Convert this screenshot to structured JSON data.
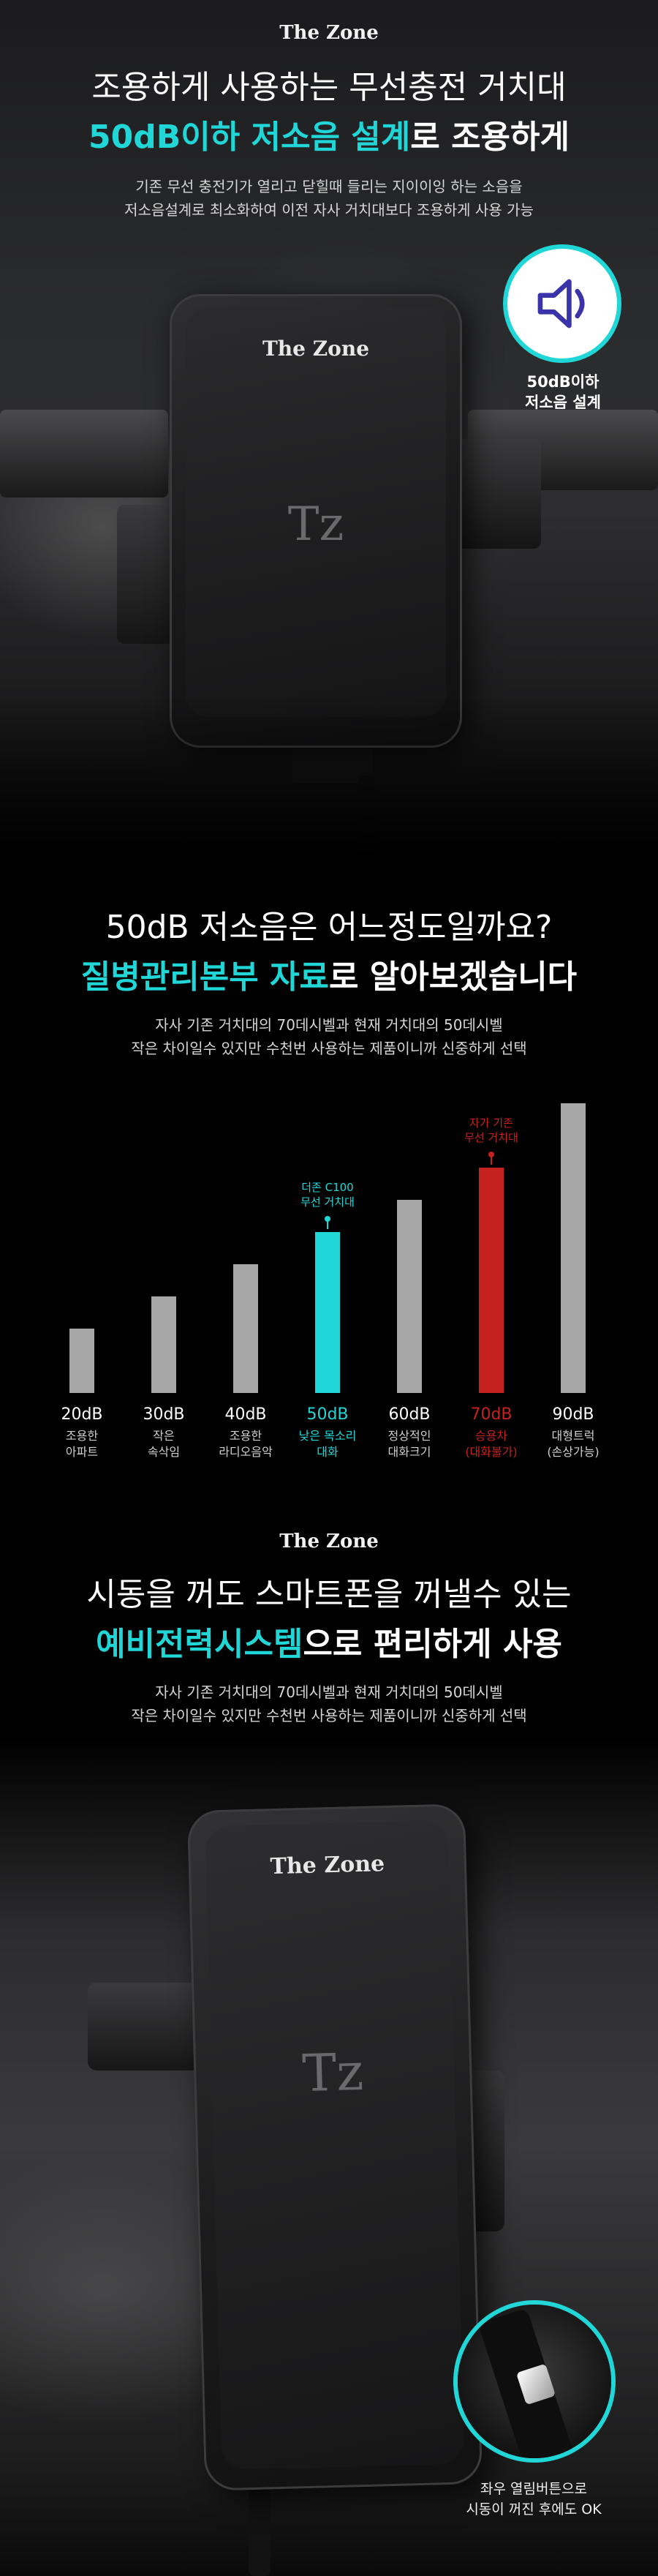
{
  "hero": {
    "brand": "The Zone",
    "title_line1": "조용하게 사용하는 무선충전 거치대",
    "title_line2_accent": "50dB이하 저소음 설계",
    "title_line2_rest": "로 조용하게",
    "desc_line1": "기존 무선 충전기가 열리고 닫힐때 들리는 지이이잉 하는 소음을",
    "desc_line2": "저소음설계로 최소화하여 이전 자사 거치대보다 조용하게 사용 가능",
    "device_brand": "The Zone",
    "device_logo": "Tz",
    "badge_icon": "speaker-icon",
    "badge_caption_line1": "50dB이하",
    "badge_caption_line2": "저소음 설계",
    "accent_color": "#21d6d6"
  },
  "noise_section": {
    "title_line1": "50dB 저소음은 어느정도일까요?",
    "title_line2_accent": "질병관리본부 자료",
    "title_line2_rest": "로 알아보겠습니다",
    "desc_line1": "자사 기존 거치대의 70데시벨과 현재 거치대의 50데시벨",
    "desc_line2": "작은 차이일수 있지만 수천번 사용하는 제품이니까 신중하게 선택"
  },
  "chart_data": {
    "type": "bar",
    "title": "",
    "xlabel": "",
    "ylabel": "",
    "ylim": [
      0,
      90
    ],
    "grid": false,
    "categories": [
      "20dB",
      "30dB",
      "40dB",
      "50dB",
      "60dB",
      "70dB",
      "90dB"
    ],
    "values": [
      20,
      30,
      40,
      50,
      60,
      70,
      90
    ],
    "descriptions": [
      [
        "조용한",
        "아파트"
      ],
      [
        "작은",
        "속삭임"
      ],
      [
        "조용한",
        "라디오음악"
      ],
      [
        "낮은 목소리",
        "대화"
      ],
      [
        "정상적인",
        "대화크기"
      ],
      [
        "승용차",
        "(대화불가)"
      ],
      [
        "대형트럭",
        "(손상가능)"
      ]
    ],
    "bar_colors": [
      "#a7a7a7",
      "#a7a7a7",
      "#a7a7a7",
      "#21d6d6",
      "#a7a7a7",
      "#c4211f",
      "#a7a7a7"
    ],
    "annotations": [
      {
        "category": "50dB",
        "lines": [
          "더존 C100",
          "무선 거치대"
        ],
        "color": "#21d6d6"
      },
      {
        "category": "70dB",
        "lines": [
          "자가 기존",
          "무선 거치대"
        ],
        "color": "#c4211f"
      }
    ]
  },
  "backup": {
    "brand": "The Zone",
    "title_line1": "시동을 꺼도 스마트폰을 꺼낼수 있는",
    "title_line2_accent": "예비전력시스템",
    "title_line2_rest": "으로 편리하게 사용",
    "desc_line1": "자사 기존 거치대의 70데시벨과 현재 거치대의 50데시벨",
    "desc_line2": "작은 차이일수 있지만 수천번 사용하는 제품이니까 신중하게 선택",
    "device_brand": "The Zone",
    "device_logo": "Tz",
    "zoom_caption_line1": "좌우 열림버튼으로",
    "zoom_caption_line2": "시동이 꺼진 후에도 OK"
  }
}
